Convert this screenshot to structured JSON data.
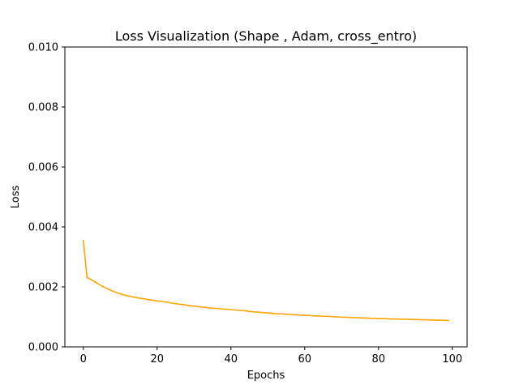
{
  "chart_data": {
    "type": "line",
    "title": "Loss Visualization (Shape , Adam, cross_entro)",
    "xlabel": "Epochs",
    "ylabel": "Loss",
    "xlim": [
      -5,
      104
    ],
    "ylim": [
      0,
      0.01
    ],
    "xticks": [
      0,
      20,
      40,
      60,
      80,
      100
    ],
    "xtick_labels": [
      "0",
      "20",
      "40",
      "60",
      "80",
      "100"
    ],
    "yticks": [
      0,
      0.002,
      0.004,
      0.006,
      0.008,
      0.01
    ],
    "ytick_labels": [
      "0.000",
      "0.002",
      "0.004",
      "0.006",
      "0.008",
      "0.010"
    ],
    "grid": false,
    "legend": false,
    "series": [
      {
        "color": "#ffa500",
        "x": [
          0,
          1,
          2,
          3,
          4,
          5,
          6,
          7,
          8,
          9,
          10,
          11,
          12,
          13,
          14,
          15,
          16,
          17,
          18,
          19,
          20,
          21,
          22,
          23,
          24,
          25,
          26,
          27,
          28,
          29,
          30,
          31,
          32,
          33,
          34,
          35,
          36,
          37,
          38,
          39,
          40,
          41,
          42,
          43,
          44,
          45,
          46,
          47,
          48,
          49,
          50,
          51,
          52,
          53,
          54,
          55,
          56,
          57,
          58,
          59,
          60,
          61,
          62,
          63,
          64,
          65,
          66,
          67,
          68,
          69,
          70,
          71,
          72,
          73,
          74,
          75,
          76,
          77,
          78,
          79,
          80,
          81,
          82,
          83,
          84,
          85,
          86,
          87,
          88,
          89,
          90,
          91,
          92,
          93,
          94,
          95,
          96,
          97,
          98,
          99
        ],
        "y": [
          0.00355,
          0.00232,
          0.00225,
          0.00218,
          0.0021,
          0.00203,
          0.00197,
          0.00191,
          0.00186,
          0.00181,
          0.00177,
          0.00173,
          0.0017,
          0.00168,
          0.00165,
          0.00163,
          0.00161,
          0.00159,
          0.00157,
          0.00155,
          0.00153,
          0.00152,
          0.0015,
          0.00148,
          0.00146,
          0.00144,
          0.00142,
          0.00141,
          0.00139,
          0.00137,
          0.00136,
          0.00134,
          0.00133,
          0.00132,
          0.0013,
          0.00129,
          0.00128,
          0.00127,
          0.00126,
          0.00125,
          0.00124,
          0.00123,
          0.00122,
          0.00121,
          0.0012,
          0.00118,
          0.00117,
          0.00116,
          0.00115,
          0.00114,
          0.00113,
          0.00112,
          0.00111,
          0.0011,
          0.0011,
          0.00109,
          0.00108,
          0.00107,
          0.00107,
          0.00106,
          0.00105,
          0.00105,
          0.00104,
          0.00103,
          0.00103,
          0.00102,
          0.00102,
          0.00101,
          0.001,
          0.001,
          0.00099,
          0.00099,
          0.00098,
          0.00098,
          0.00097,
          0.00097,
          0.00096,
          0.00096,
          0.00095,
          0.00095,
          0.00094,
          0.00094,
          0.00094,
          0.00093,
          0.00093,
          0.00093,
          0.00092,
          0.00092,
          0.00092,
          0.00091,
          0.00091,
          0.00091,
          0.0009,
          0.0009,
          0.0009,
          0.00089,
          0.00089,
          0.00089,
          0.00088,
          0.00088
        ]
      }
    ]
  }
}
